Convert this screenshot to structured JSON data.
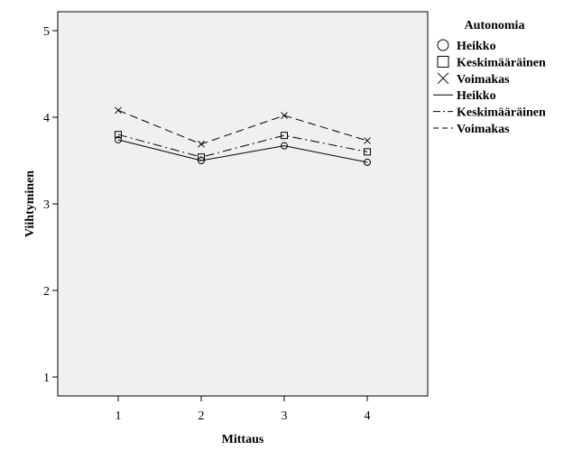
{
  "chart_data": {
    "type": "line",
    "title": "",
    "xlabel": "Mittaus",
    "ylabel": "Viihtyminen",
    "x": [
      "1",
      "2",
      "3",
      "4"
    ],
    "yticks": [
      "1",
      "2",
      "3",
      "4",
      "5"
    ],
    "ylim": [
      0.8,
      5.2
    ],
    "grid": false,
    "legend_position": "right",
    "legend_title": "Autonomia",
    "plot_background": "#f0f0f0",
    "series": [
      {
        "name": "Heikko",
        "values": [
          3.74,
          3.5,
          3.67,
          3.48
        ],
        "marker": "circle",
        "line_style": "solid"
      },
      {
        "name": "Keskimääräinen",
        "values": [
          3.8,
          3.54,
          3.79,
          3.6
        ],
        "marker": "square",
        "line_style": "dashdot"
      },
      {
        "name": "Voimakas",
        "values": [
          4.08,
          3.69,
          4.02,
          3.73
        ],
        "marker": "x",
        "line_style": "dashed"
      }
    ]
  }
}
